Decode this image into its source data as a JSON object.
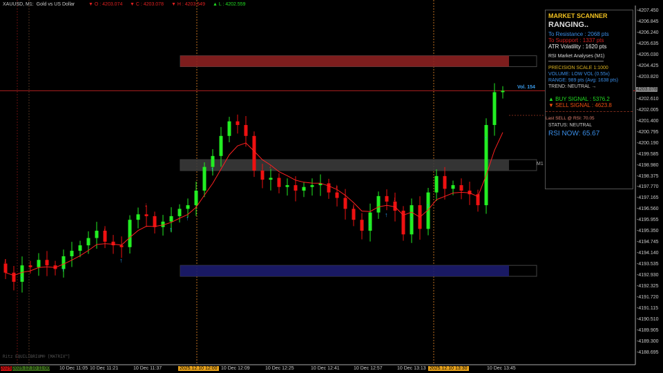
{
  "header": {
    "symbol": "XAUUSD, M1:",
    "description": "Gold vs US Dollar",
    "open": "▼ O : 4203.074",
    "close": "▼ C : 4203.078",
    "high": "▼ H : 4203.549",
    "low": "▲ L : 4202.559"
  },
  "scanner": {
    "title": "MARKET SCANNER",
    "state": "RANGING..",
    "to_resistance": "To Resistance : 2068 pts",
    "to_support": "To Suppport : 1337 pts",
    "atr": "ATR Volatility : 1620 pts",
    "rsi_title": "RSI Market Analyses (M1)",
    "precision": "PRECISION SCALE 1:1000",
    "volume": "VOLUME: LOW VOL (0.55x)",
    "range": "RANGE: 989 pts (Avg: 1638 pts)",
    "trend": "TREND: NEUTRAL →",
    "buy": "▲ BUY SIGNAL : 5376.2",
    "sell": "▼ SELL SIGNAL : 4623.8",
    "last_sell": "Last SELL @ RSI: 70.05",
    "status": "STATUS: NEUTRAL",
    "rsi_now": "RSI NOW: 65.67"
  },
  "labels": {
    "vol": "Vol. 154",
    "m1": "M1",
    "current_price": "4203.078",
    "watermark": "Ritz EQUILIBRIUM® [MATRIX™]"
  },
  "colors": {
    "bull": "#22ee22",
    "bear": "#ee1111",
    "ma": "#ff2020",
    "buy_arrow": "#2a9df4",
    "sell_arrow": "#ee2222",
    "resistance": "#8b2020",
    "mid": "#3a3a3a",
    "support": "#1c1c6e",
    "accent": "#f0c020"
  },
  "chart_data": {
    "type": "candlestick",
    "ylim": [
      4188.695,
      4207.45
    ],
    "y_ticks": [
      "4207.450",
      "4206.845",
      "4206.240",
      "4205.635",
      "4205.030",
      "4204.425",
      "4203.820",
      "4203.215",
      "4202.610",
      "4202.005",
      "4201.400",
      "4200.795",
      "4200.190",
      "4199.585",
      "4198.980",
      "4198.375",
      "4197.770",
      "4197.165",
      "4196.560",
      "4195.955",
      "4195.350",
      "4194.745",
      "4194.140",
      "4193.535",
      "4192.930",
      "4192.325",
      "4191.720",
      "4191.115",
      "4190.510",
      "4189.905",
      "4189.300",
      "4188.695"
    ],
    "x_ticks": [
      "2025",
      "2025.12.10 11:00",
      "10 Dec 11:05",
      "10 Dec 11:21",
      "10 Dec 11:37",
      "2025.12.10 12:00",
      "10 Dec 12:09",
      "10 Dec 12:25",
      "10 Dec 12:41",
      "10 Dec 12:57",
      "10 Dec 13:13",
      "2025.12.10 13:30",
      "10 Dec 13:45"
    ],
    "first_open": 4193.6,
    "closes": [
      4193.1,
      4192.6,
      4193.5,
      4193.4,
      4193.8,
      4193.5,
      4193.3,
      4194.0,
      4194.3,
      4194.6,
      4195.0,
      4195.4,
      4194.8,
      4194.6,
      4194.5,
      4196.0,
      4196.3,
      4196.2,
      4195.6,
      4195.9,
      4196.2,
      4196.6,
      4196.8,
      4197.6,
      4198.9,
      4199.5,
      4200.6,
      4201.4,
      4201.2,
      4200.6,
      4198.7,
      4198.2,
      4198.3,
      4197.8,
      4197.9,
      4197.6,
      4197.8,
      4197.9,
      4198.0,
      4197.5,
      4197.2,
      4196.6,
      4196.0,
      4195.4,
      4196.4,
      4197.3,
      4197.0,
      4196.5,
      4195.2,
      4196.8,
      4195.5,
      4197.5,
      4198.4,
      4197.7,
      4197.9,
      4197.6,
      4197.4,
      4196.8,
      4201.2,
      4203.0,
      4203.078
    ],
    "buy_signals": [
      2,
      7,
      14,
      20,
      22,
      25,
      44,
      46,
      49,
      51,
      58
    ],
    "sell_signals": [
      0,
      12,
      17,
      32,
      40,
      42,
      47
    ],
    "zones": [
      {
        "name": "resistance",
        "top": 4205.0,
        "bottom": 4204.4
      },
      {
        "name": "mid",
        "top": 4199.3,
        "bottom": 4198.7
      },
      {
        "name": "support",
        "top": 4193.5,
        "bottom": 4192.9
      }
    ],
    "current_price": 4203.078
  }
}
